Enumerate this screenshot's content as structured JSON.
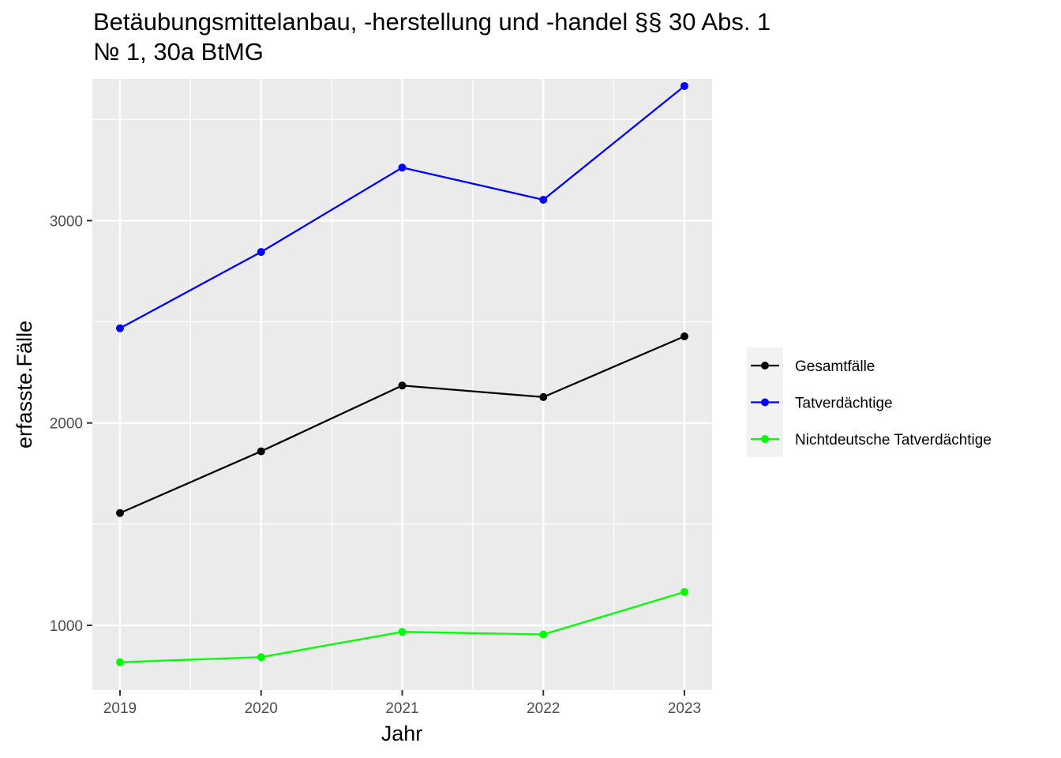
{
  "chart_data": {
    "type": "line",
    "title_lines": [
      "Betäubungsmittelanbau, -herstellung und -handel §§ 30 Abs. 1",
      "№ 1, 30a BtMG"
    ],
    "xlabel": "Jahr",
    "ylabel": "erfasste.Fälle",
    "x": [
      "2019",
      "2020",
      "2021",
      "2022",
      "2023"
    ],
    "yticks": [
      "1000",
      "2000",
      "3000"
    ],
    "ylim": [
      680,
      3700
    ],
    "grid": true,
    "legend_position": "right",
    "series": [
      {
        "name": "Gesamtfälle",
        "color": "#000000",
        "values": [
          1555,
          1860,
          2185,
          2128,
          2428
        ]
      },
      {
        "name": "Tatverdächtige",
        "color": "#0000FF",
        "values": [
          2468,
          2845,
          3262,
          3103,
          3665
        ]
      },
      {
        "name": "Nichtdeutsche Tatverdächtige",
        "color": "#00FF00",
        "values": [
          818,
          843,
          968,
          955,
          1165
        ]
      }
    ]
  }
}
